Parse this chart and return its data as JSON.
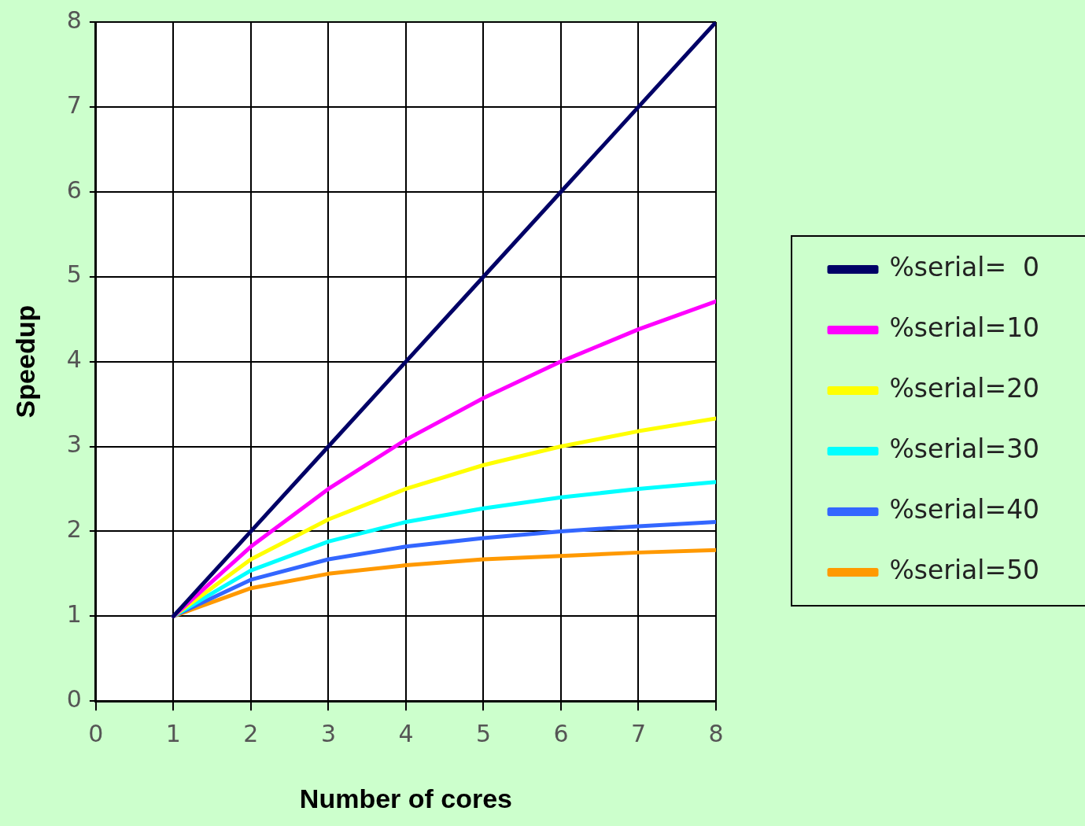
{
  "chart_data": {
    "type": "line",
    "xlabel": "Number of cores",
    "ylabel": "Speedup",
    "x": [
      1,
      2,
      3,
      4,
      5,
      6,
      7,
      8
    ],
    "series": [
      {
        "name": "%serial=  0",
        "color": "#000066",
        "values": [
          1,
          2,
          3,
          4,
          5,
          6,
          7,
          8
        ]
      },
      {
        "name": "%serial=10",
        "color": "#ff00ff",
        "values": [
          1,
          1.82,
          2.5,
          3.08,
          3.57,
          4,
          4.38,
          4.71
        ]
      },
      {
        "name": "%serial=20",
        "color": "#ffff00",
        "values": [
          1,
          1.67,
          2.14,
          2.5,
          2.78,
          3,
          3.18,
          3.33
        ]
      },
      {
        "name": "%serial=30",
        "color": "#00ffff",
        "values": [
          1,
          1.54,
          1.88,
          2.11,
          2.27,
          2.4,
          2.5,
          2.58
        ]
      },
      {
        "name": "%serial=40",
        "color": "#3366ff",
        "values": [
          1,
          1.43,
          1.67,
          1.82,
          1.92,
          2,
          2.06,
          2.11
        ]
      },
      {
        "name": "%serial=50",
        "color": "#ff9900",
        "values": [
          1,
          1.33,
          1.5,
          1.6,
          1.67,
          1.71,
          1.75,
          1.78
        ]
      }
    ],
    "xlim": [
      0,
      8
    ],
    "xticks": [
      0,
      1,
      2,
      3,
      4,
      5,
      6,
      7,
      8
    ],
    "ylim": [
      0,
      8
    ],
    "yticks": [
      0,
      1,
      2,
      3,
      4,
      5,
      6,
      7,
      8
    ],
    "grid": true,
    "legend": "right",
    "marker": "none",
    "line_style": "solid"
  }
}
